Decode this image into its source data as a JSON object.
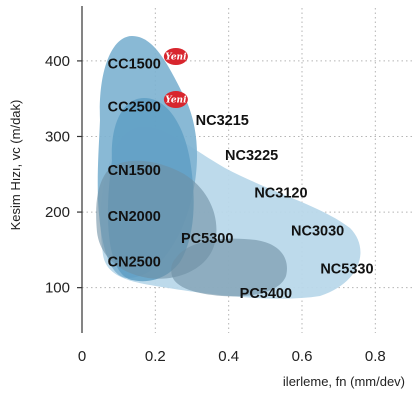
{
  "chart_data": {
    "type": "scatter",
    "title": "",
    "xlabel": "ilerleme, fn (mm/dev)",
    "ylabel": "Kesim Hızı, vc (m/dak)",
    "xlim": [
      0,
      0.9
    ],
    "ylim": [
      40,
      470
    ],
    "x_ticks": [
      0,
      0.2,
      0.4,
      0.6,
      0.8
    ],
    "x_tick_labels": [
      "0",
      "0.2",
      "0.4",
      "0.6",
      "0.8"
    ],
    "y_ticks": [
      100,
      200,
      300,
      400
    ],
    "y_tick_labels": [
      "100",
      "200",
      "300",
      "400"
    ],
    "grid": "dotted",
    "new_badge_text": "Yeni",
    "colors": {
      "region_light": "#b9d8ea",
      "region_mid": "#7fb3d1",
      "region_dark": "#5f9fc4",
      "region_gray": "#6e8fa3",
      "badge": "#d8262e"
    },
    "regions": [
      {
        "name": "broad-area",
        "shade": "light",
        "x": [
          0.06,
          0.76
        ],
        "y": [
          75,
          370
        ]
      },
      {
        "name": "upper-area",
        "shade": "mid",
        "x": [
          0.05,
          0.34
        ],
        "y": [
          80,
          460
        ]
      },
      {
        "name": "middle-area",
        "shade": "dark",
        "x": [
          0.09,
          0.32
        ],
        "y": [
          90,
          345
        ]
      },
      {
        "name": "lower-area",
        "shade": "gray",
        "x": [
          0.05,
          0.41
        ],
        "y": [
          85,
          240
        ]
      },
      {
        "name": "bottom-area",
        "shade": "gray",
        "x": [
          0.21,
          0.6
        ],
        "y": [
          65,
          160
        ]
      }
    ],
    "labels": [
      {
        "text": "CC1500",
        "x": 0.07,
        "y": 390,
        "badge": true
      },
      {
        "text": "CC2500",
        "x": 0.07,
        "y": 333,
        "badge": true
      },
      {
        "text": "NC3215",
        "x": 0.31,
        "y": 315,
        "badge": false
      },
      {
        "text": "CN1500",
        "x": 0.07,
        "y": 249,
        "badge": false
      },
      {
        "text": "NC3225",
        "x": 0.39,
        "y": 269,
        "badge": false
      },
      {
        "text": "NC3120",
        "x": 0.47,
        "y": 219,
        "badge": false
      },
      {
        "text": "CN2000",
        "x": 0.07,
        "y": 188,
        "badge": false
      },
      {
        "text": "NC3030",
        "x": 0.57,
        "y": 169,
        "badge": false
      },
      {
        "text": "PC5300",
        "x": 0.27,
        "y": 159,
        "badge": false
      },
      {
        "text": "CN2500",
        "x": 0.07,
        "y": 128,
        "badge": false
      },
      {
        "text": "NC5330",
        "x": 0.65,
        "y": 119,
        "badge": false
      },
      {
        "text": "PC5400",
        "x": 0.43,
        "y": 86,
        "badge": false
      }
    ]
  }
}
